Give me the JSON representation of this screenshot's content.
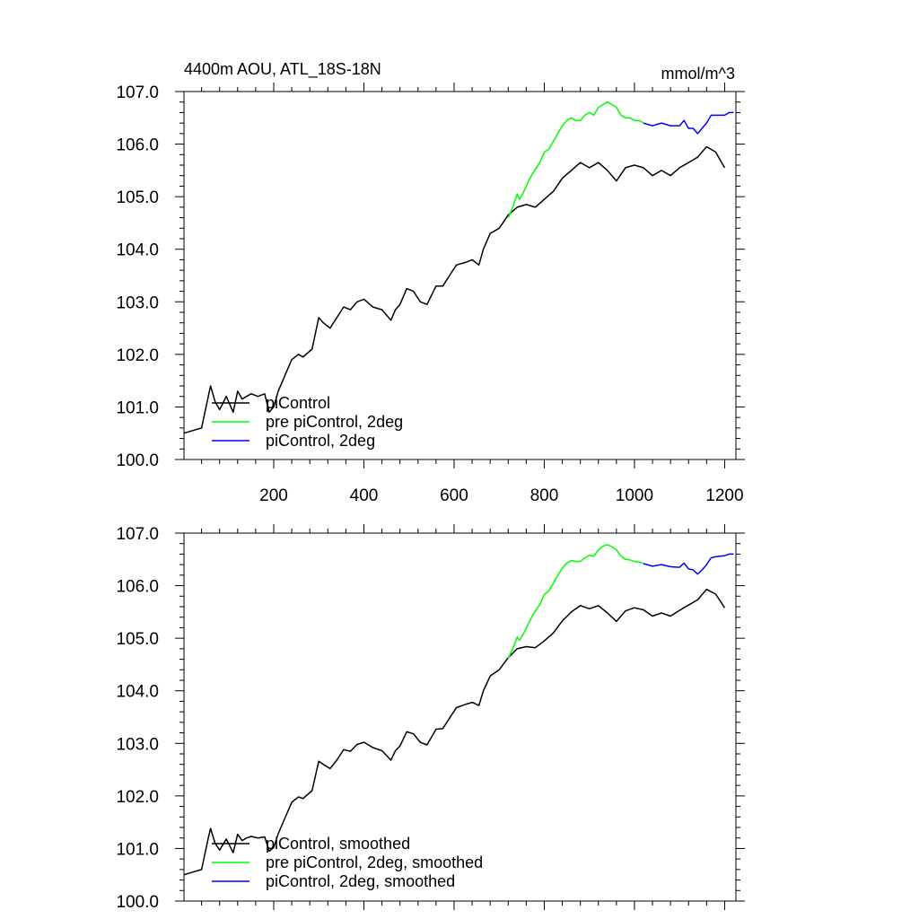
{
  "page": {
    "title_left": "4400m AOU, ATL_18S-18N",
    "title_right": "mmol/m^3"
  },
  "colors": {
    "piControl": "#000000",
    "pre_piControl_2deg": "#00ff00",
    "piControl_2deg": "#0000ff"
  },
  "chart_data": [
    {
      "type": "line",
      "panel": "top",
      "title": "4400m AOU, ATL_18S-18N",
      "units": "mmol/m^3",
      "xlim": [
        1,
        1225
      ],
      "ylim": [
        100.0,
        107.0
      ],
      "xticks": [
        200,
        400,
        600,
        800,
        1000,
        1200
      ],
      "xtick_labels": [
        "200",
        "400",
        "600",
        "800",
        "1000",
        "1200"
      ],
      "yticks": [
        100.0,
        101.0,
        102.0,
        103.0,
        104.0,
        105.0,
        106.0,
        107.0
      ],
      "ytick_labels": [
        "100.0",
        "101.0",
        "102.0",
        "103.0",
        "104.0",
        "105.0",
        "106.0",
        "107.0"
      ],
      "legend_position": "bottom-left",
      "series": [
        {
          "name": "piControl",
          "color": "#000000",
          "x": [
            1,
            20,
            40,
            55,
            60,
            70,
            80,
            95,
            110,
            120,
            130,
            140,
            150,
            165,
            180,
            190,
            200,
            210,
            225,
            240,
            255,
            265,
            285,
            300,
            310,
            325,
            340,
            355,
            370,
            385,
            400,
            420,
            440,
            460,
            470,
            480,
            495,
            510,
            525,
            540,
            560,
            575,
            590,
            605,
            625,
            640,
            655,
            665,
            680,
            700,
            720,
            740,
            760,
            780,
            800,
            820,
            840,
            860,
            880,
            900,
            920,
            940,
            960,
            980,
            1000,
            1020,
            1040,
            1060,
            1080,
            1100,
            1120,
            1140,
            1160,
            1180,
            1200
          ],
          "y": [
            100.5,
            100.55,
            100.6,
            101.2,
            101.4,
            101.1,
            100.95,
            101.2,
            100.9,
            101.3,
            101.15,
            101.2,
            101.25,
            101.2,
            101.25,
            100.9,
            101.0,
            101.3,
            101.6,
            101.9,
            102.0,
            101.95,
            102.1,
            102.7,
            102.6,
            102.5,
            102.7,
            102.9,
            102.85,
            103.0,
            103.05,
            102.9,
            102.85,
            102.65,
            102.85,
            102.95,
            103.25,
            103.2,
            103.0,
            102.95,
            103.3,
            103.3,
            103.5,
            103.7,
            103.75,
            103.8,
            103.7,
            104.0,
            104.3,
            104.4,
            104.65,
            104.8,
            104.85,
            104.8,
            104.95,
            105.1,
            105.35,
            105.5,
            105.65,
            105.55,
            105.65,
            105.5,
            105.3,
            105.55,
            105.6,
            105.55,
            105.4,
            105.5,
            105.4,
            105.55,
            105.65,
            105.75,
            105.95,
            105.85,
            105.55
          ]
        },
        {
          "name": "pre piControl, 2deg",
          "color": "#00ff00",
          "x": [
            720,
            730,
            740,
            745,
            755,
            765,
            775,
            790,
            800,
            810,
            820,
            830,
            840,
            850,
            860,
            870,
            880,
            890,
            900,
            910,
            920,
            930,
            940,
            950,
            960,
            970,
            980,
            990,
            1000,
            1010,
            1020
          ],
          "y": [
            104.6,
            104.8,
            105.05,
            104.95,
            105.1,
            105.3,
            105.45,
            105.65,
            105.85,
            105.9,
            106.05,
            106.2,
            106.35,
            106.45,
            106.5,
            106.45,
            106.45,
            106.55,
            106.6,
            106.55,
            106.7,
            106.75,
            106.8,
            106.75,
            106.7,
            106.55,
            106.5,
            106.5,
            106.45,
            106.45,
            106.4
          ]
        },
        {
          "name": "piControl, 2deg",
          "color": "#0000ff",
          "x": [
            1020,
            1040,
            1060,
            1080,
            1100,
            1110,
            1120,
            1130,
            1140,
            1150,
            1160,
            1170,
            1180,
            1190,
            1200,
            1210,
            1220
          ],
          "y": [
            106.4,
            106.35,
            106.4,
            106.35,
            106.35,
            106.45,
            106.3,
            106.3,
            106.2,
            106.3,
            106.4,
            106.55,
            106.55,
            106.55,
            106.55,
            106.6,
            106.6
          ]
        }
      ]
    },
    {
      "type": "line",
      "panel": "bottom",
      "xlim": [
        1,
        1225
      ],
      "ylim": [
        100.0,
        107.0
      ],
      "yticks": [
        100.0,
        101.0,
        102.0,
        103.0,
        104.0,
        105.0,
        106.0,
        107.0
      ],
      "ytick_labels": [
        "100.0",
        "101.0",
        "102.0",
        "103.0",
        "104.0",
        "105.0",
        "106.0",
        "107.0"
      ],
      "legend_position": "bottom-left",
      "series": [
        {
          "name": "piControl, smoothed",
          "color": "#000000",
          "x": [
            1,
            20,
            40,
            55,
            60,
            70,
            80,
            95,
            110,
            120,
            130,
            140,
            150,
            165,
            180,
            190,
            200,
            210,
            225,
            240,
            255,
            265,
            285,
            300,
            310,
            325,
            340,
            355,
            370,
            385,
            400,
            420,
            440,
            460,
            470,
            480,
            495,
            510,
            525,
            540,
            560,
            575,
            590,
            605,
            625,
            640,
            655,
            665,
            680,
            700,
            720,
            740,
            760,
            780,
            800,
            820,
            840,
            860,
            880,
            900,
            920,
            940,
            960,
            980,
            1000,
            1020,
            1040,
            1060,
            1080,
            1100,
            1120,
            1140,
            1160,
            1180,
            1200
          ],
          "y": [
            100.5,
            100.55,
            100.6,
            101.2,
            101.38,
            101.1,
            100.97,
            101.18,
            100.92,
            101.27,
            101.15,
            101.2,
            101.23,
            101.2,
            101.22,
            100.95,
            101.02,
            101.28,
            101.58,
            101.88,
            101.98,
            101.95,
            102.1,
            102.66,
            102.6,
            102.52,
            102.68,
            102.88,
            102.85,
            102.98,
            103.02,
            102.92,
            102.86,
            102.68,
            102.86,
            102.95,
            103.22,
            103.18,
            103.02,
            102.97,
            103.27,
            103.28,
            103.48,
            103.68,
            103.74,
            103.78,
            103.72,
            104.0,
            104.28,
            104.4,
            104.63,
            104.8,
            104.84,
            104.82,
            104.95,
            105.1,
            105.33,
            105.5,
            105.62,
            105.56,
            105.62,
            105.48,
            105.32,
            105.52,
            105.58,
            105.54,
            105.42,
            105.48,
            105.42,
            105.53,
            105.63,
            105.73,
            105.93,
            105.84,
            105.58
          ]
        },
        {
          "name": "pre piControl, 2deg, smoothed",
          "color": "#00ff00",
          "x": [
            720,
            730,
            740,
            745,
            755,
            765,
            775,
            790,
            800,
            810,
            820,
            830,
            840,
            850,
            860,
            870,
            880,
            890,
            900,
            910,
            920,
            930,
            940,
            950,
            960,
            970,
            980,
            990,
            1000,
            1010,
            1020
          ],
          "y": [
            104.62,
            104.8,
            105.02,
            104.96,
            105.1,
            105.28,
            105.45,
            105.64,
            105.83,
            105.9,
            106.04,
            106.2,
            106.33,
            106.43,
            106.48,
            106.46,
            106.46,
            106.53,
            106.58,
            106.56,
            106.68,
            106.75,
            106.78,
            106.74,
            106.68,
            106.56,
            106.5,
            106.49,
            106.46,
            106.45,
            106.42
          ]
        },
        {
          "name": "piControl, 2deg, smoothed",
          "color": "#0000ff",
          "x": [
            1020,
            1040,
            1060,
            1080,
            1100,
            1110,
            1120,
            1130,
            1140,
            1150,
            1160,
            1170,
            1180,
            1190,
            1200,
            1210,
            1220
          ],
          "y": [
            106.42,
            106.37,
            106.4,
            106.36,
            106.35,
            106.43,
            106.32,
            106.3,
            106.22,
            106.3,
            106.4,
            106.53,
            106.55,
            106.56,
            106.57,
            106.6,
            106.6
          ]
        }
      ]
    }
  ]
}
